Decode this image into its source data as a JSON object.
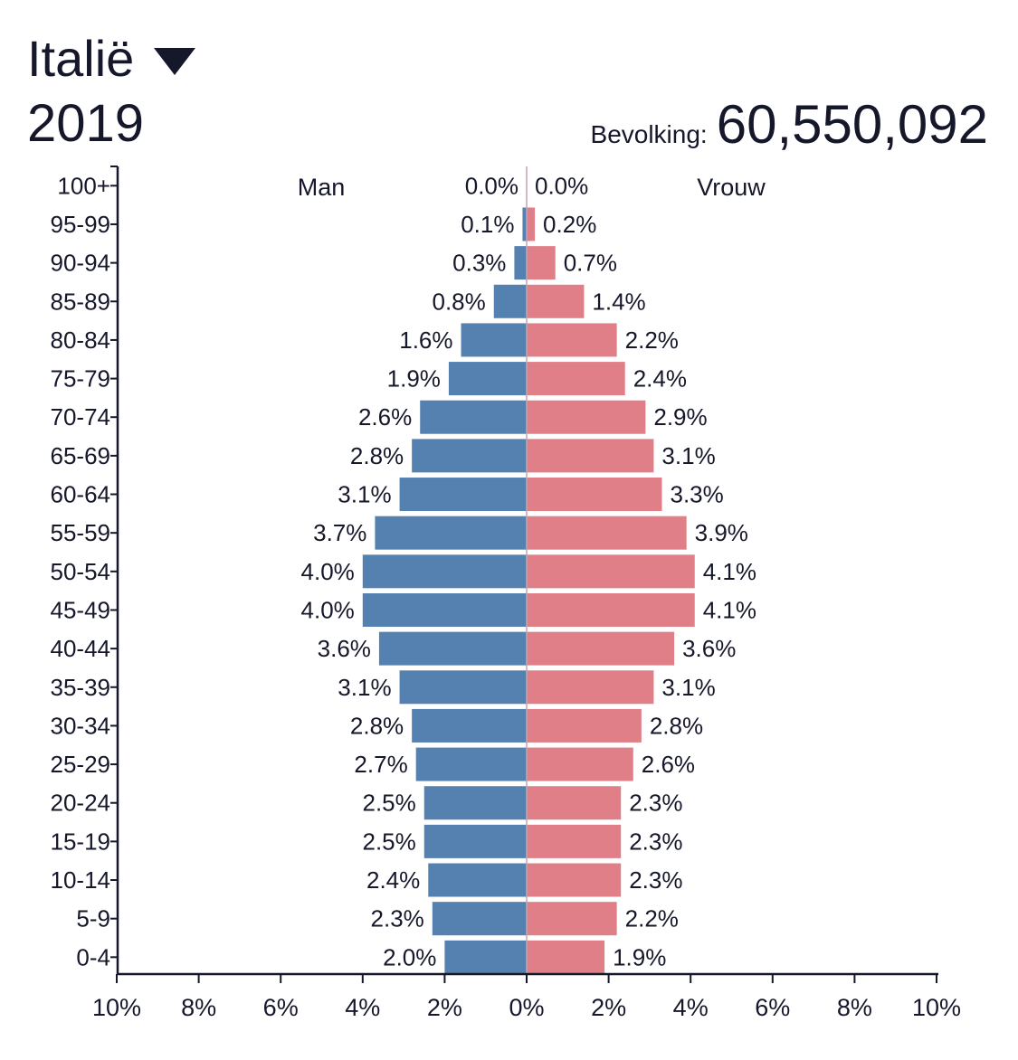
{
  "header": {
    "country": "Italië",
    "year": "2019",
    "population_label": "Bevolking:",
    "population_value": "60,550,092"
  },
  "chart_data": {
    "type": "bar",
    "orientation": "horizontal",
    "subtype": "population-pyramid",
    "categories": [
      "100+",
      "95-99",
      "90-94",
      "85-89",
      "80-84",
      "75-79",
      "70-74",
      "65-69",
      "60-64",
      "55-59",
      "50-54",
      "45-49",
      "40-44",
      "35-39",
      "30-34",
      "25-29",
      "20-24",
      "15-19",
      "10-14",
      "5-9",
      "0-4"
    ],
    "series": [
      {
        "name": "Man",
        "color": "#5581b0",
        "values": [
          0.0,
          0.1,
          0.3,
          0.8,
          1.6,
          1.9,
          2.6,
          2.8,
          3.1,
          3.7,
          4.0,
          4.0,
          3.6,
          3.1,
          2.8,
          2.7,
          2.5,
          2.5,
          2.4,
          2.3,
          2.0
        ],
        "labels": [
          "0.0%",
          "0.1%",
          "0.3%",
          "0.8%",
          "1.6%",
          "1.9%",
          "2.6%",
          "2.8%",
          "3.1%",
          "3.7%",
          "4.0%",
          "4.0%",
          "3.6%",
          "3.1%",
          "2.8%",
          "2.7%",
          "2.5%",
          "2.5%",
          "2.4%",
          "2.3%",
          "2.0%"
        ]
      },
      {
        "name": "Vrouw",
        "color": "#e07f87",
        "values": [
          0.0,
          0.2,
          0.7,
          1.4,
          2.2,
          2.4,
          2.9,
          3.1,
          3.3,
          3.9,
          4.1,
          4.1,
          3.6,
          3.1,
          2.8,
          2.6,
          2.3,
          2.3,
          2.3,
          2.2,
          1.9
        ],
        "labels": [
          "0.0%",
          "0.2%",
          "0.7%",
          "1.4%",
          "2.2%",
          "2.4%",
          "2.9%",
          "3.1%",
          "3.3%",
          "3.9%",
          "4.1%",
          "4.1%",
          "3.6%",
          "3.1%",
          "2.8%",
          "2.6%",
          "2.3%",
          "2.3%",
          "2.3%",
          "2.2%",
          "1.9%"
        ]
      }
    ],
    "xlim": [
      -10,
      10
    ],
    "xticks": [
      -10,
      -8,
      -6,
      -4,
      -2,
      0,
      2,
      4,
      6,
      8,
      10
    ],
    "xtick_labels": [
      "10%",
      "8%",
      "6%",
      "4%",
      "2%",
      "0%",
      "2%",
      "4%",
      "6%",
      "8%",
      "10%"
    ],
    "grid": false
  }
}
